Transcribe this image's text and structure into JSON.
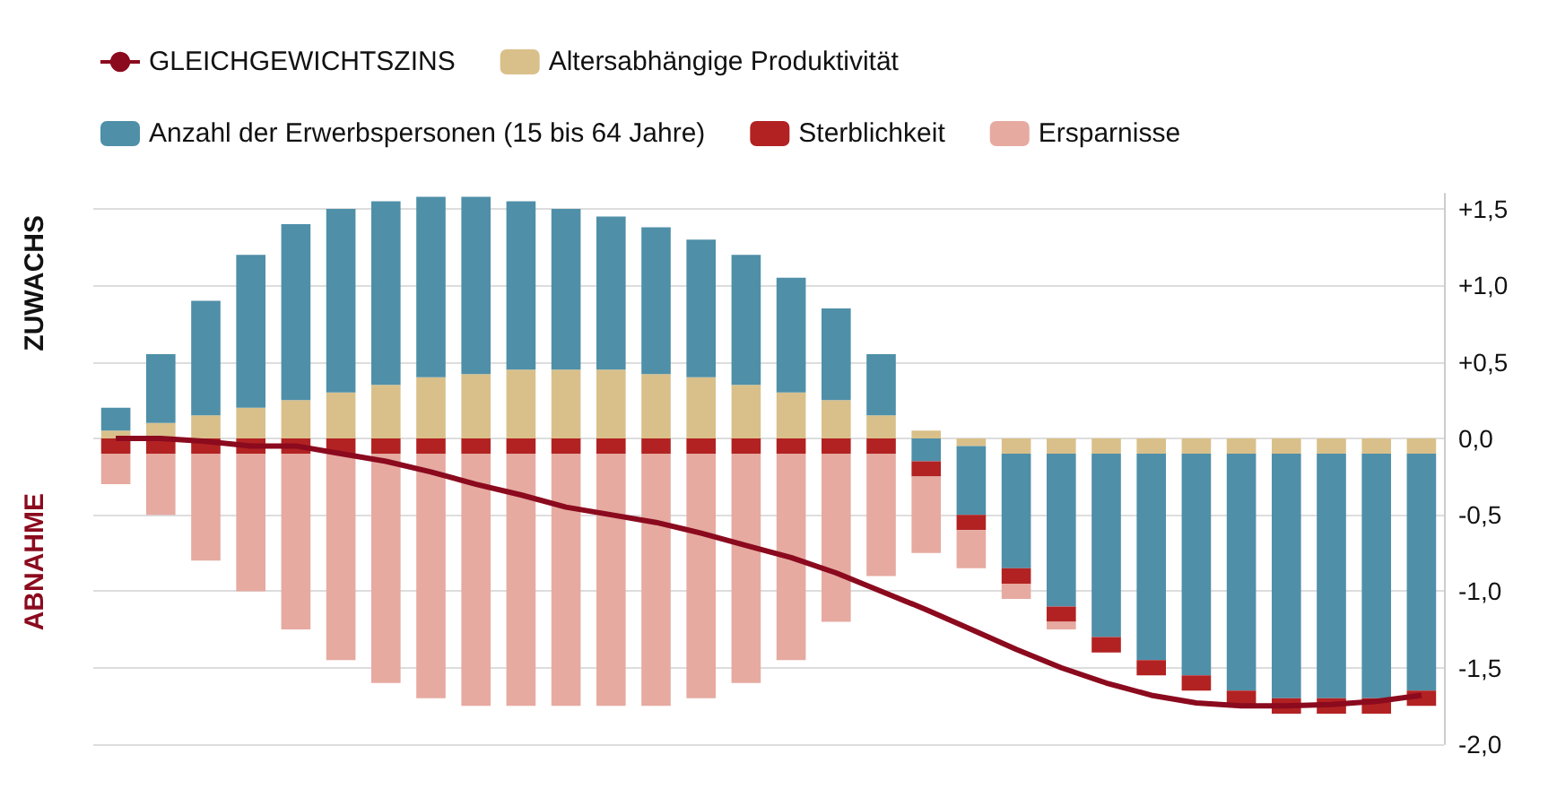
{
  "chart_data": {
    "type": "bar",
    "stacked": true,
    "categories": [
      null,
      null,
      null,
      null,
      null,
      null,
      null,
      null,
      null,
      null,
      null,
      null,
      null,
      null,
      null,
      null,
      null,
      null,
      null,
      null,
      null,
      null,
      null,
      null,
      null,
      null,
      null,
      null,
      null,
      null
    ],
    "series": [
      {
        "name": "GLEICHGEWICHTSZINS",
        "type": "line",
        "color": "#8b0a1e",
        "values": [
          0,
          0,
          -0.02,
          -0.05,
          -0.05,
          -0.1,
          -0.15,
          -0.22,
          -0.3,
          -0.37,
          -0.45,
          -0.5,
          -0.55,
          -0.62,
          -0.7,
          -0.78,
          -0.88,
          -1.0,
          -1.12,
          -1.25,
          -1.38,
          -1.5,
          -1.6,
          -1.68,
          -1.73,
          -1.75,
          -1.75,
          -1.74,
          -1.72,
          -1.68
        ]
      },
      {
        "name": "Altersabhängige Produktivität",
        "color": "#d9c08a",
        "values": [
          0.05,
          0.1,
          0.15,
          0.2,
          0.25,
          0.3,
          0.35,
          0.4,
          0.42,
          0.45,
          0.45,
          0.45,
          0.42,
          0.4,
          0.35,
          0.3,
          0.25,
          0.15,
          0.05,
          -0.05,
          -0.1,
          -0.1,
          -0.1,
          -0.1,
          -0.1,
          -0.1,
          -0.1,
          -0.1,
          -0.1,
          -0.1
        ]
      },
      {
        "name": "Anzahl der Erwerbspersonen (15 bis 64 Jahre)",
        "color": "#4f8fa8",
        "values": [
          0.15,
          0.45,
          0.75,
          1.0,
          1.15,
          1.2,
          1.2,
          1.18,
          1.16,
          1.1,
          1.05,
          1.0,
          0.96,
          0.9,
          0.85,
          0.75,
          0.6,
          0.4,
          -0.15,
          -0.45,
          -0.75,
          -1.0,
          -1.2,
          -1.35,
          -1.45,
          -1.55,
          -1.6,
          -1.6,
          -1.6,
          -1.55
        ]
      },
      {
        "name": "Sterblichkeit",
        "color": "#b22222",
        "values": [
          -0.1,
          -0.1,
          -0.1,
          -0.1,
          -0.1,
          -0.1,
          -0.1,
          -0.1,
          -0.1,
          -0.1,
          -0.1,
          -0.1,
          -0.1,
          -0.1,
          -0.1,
          -0.1,
          -0.1,
          -0.1,
          -0.1,
          -0.1,
          -0.1,
          -0.1,
          -0.1,
          -0.1,
          -0.1,
          -0.1,
          -0.1,
          -0.1,
          -0.1,
          -0.1
        ]
      },
      {
        "name": "Ersparnisse",
        "color": "#e6aaa0",
        "values": [
          -0.2,
          -0.4,
          -0.7,
          -0.9,
          -1.15,
          -1.35,
          -1.5,
          -1.6,
          -1.65,
          -1.65,
          -1.65,
          -1.65,
          -1.65,
          -1.6,
          -1.5,
          -1.35,
          -1.1,
          -0.8,
          -0.5,
          -0.25,
          -0.1,
          -0.05,
          0,
          0,
          0,
          0,
          0,
          0,
          0,
          0
        ]
      }
    ],
    "annotations": [
      "ZUWACHS",
      "ABNAHME"
    ],
    "ylim": [
      -2.0,
      1.6
    ],
    "yticks": [
      {
        "value": 1.5,
        "label": "+1,5"
      },
      {
        "value": 1.0,
        "label": "+1,0"
      },
      {
        "value": 0.5,
        "label": "+0,5"
      },
      {
        "value": 0,
        "label": "0,0"
      },
      {
        "value": -0.5,
        "label": "-0,5"
      },
      {
        "value": -1.0,
        "label": "-1,0"
      },
      {
        "value": -1.5,
        "label": "-1,5"
      },
      {
        "value": -2.0,
        "label": "-2,0"
      }
    ],
    "grid": "y",
    "legend": "top",
    "tick_labels": "y"
  }
}
